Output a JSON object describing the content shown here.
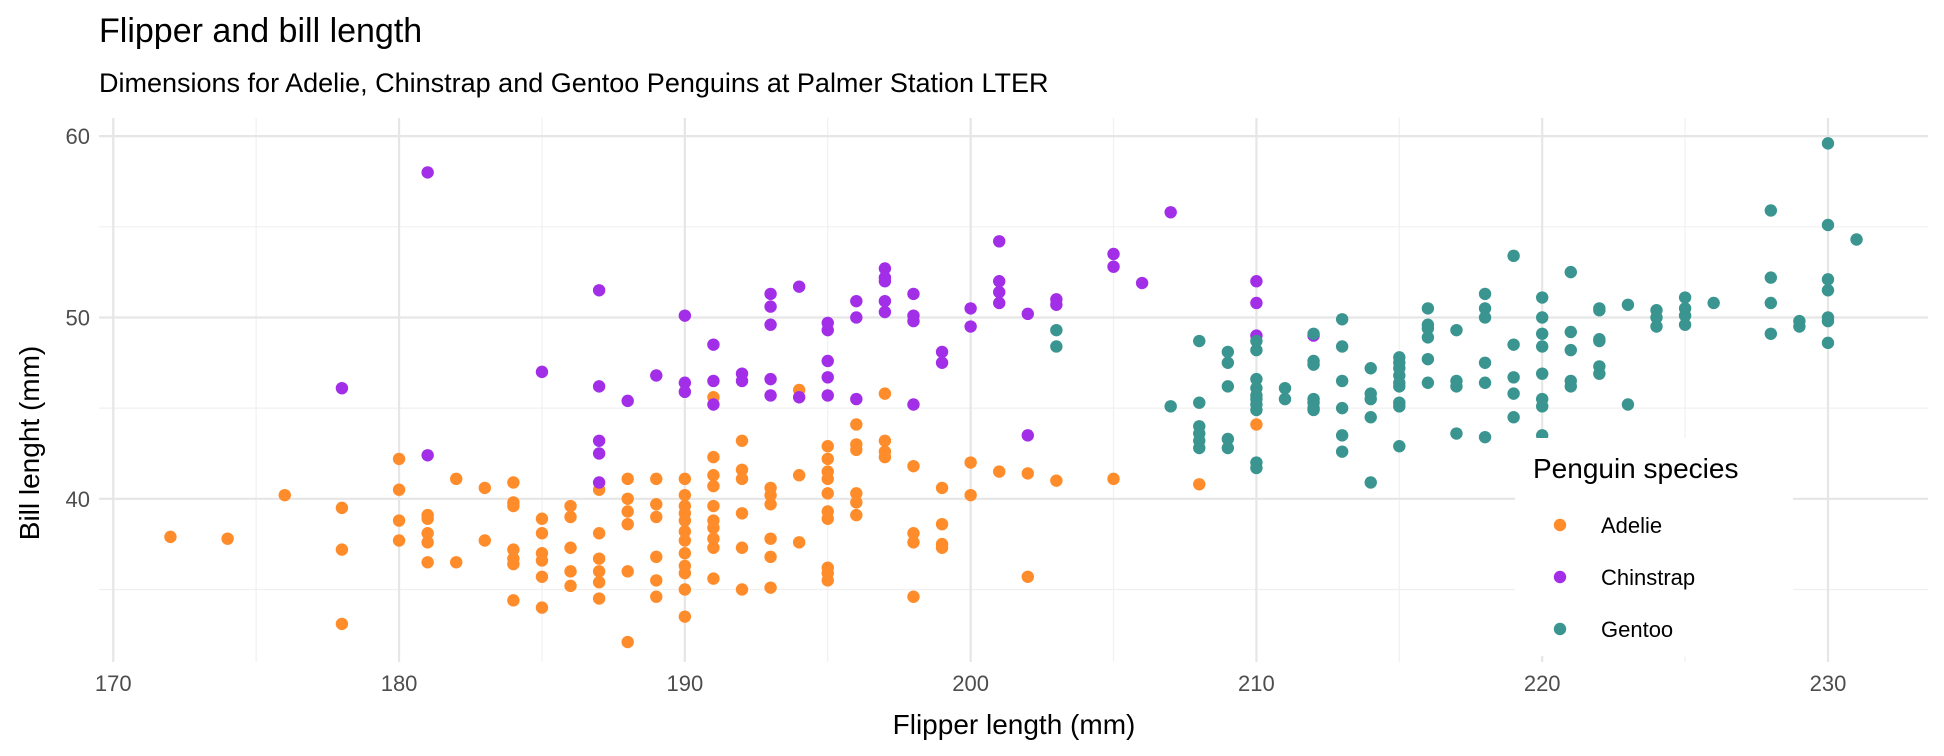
{
  "chart_data": {
    "type": "scatter",
    "title": "Flipper and bill length",
    "subtitle": "Dimensions for Adelie, Chinstrap and Gentoo Penguins at Palmer Station LTER",
    "xlabel": "Flipper length (mm)",
    "ylabel": "Bill lenght (mm)",
    "xlim": [
      169.5,
      233.5
    ],
    "ylim": [
      31,
      61
    ],
    "x_ticks": [
      170,
      180,
      190,
      200,
      210,
      220,
      230
    ],
    "y_ticks": [
      40,
      50,
      60
    ],
    "grid": true,
    "legend": {
      "title": "Penguin species",
      "position": "right-inset"
    },
    "series": [
      {
        "name": "Adelie",
        "color": "#FF8C2B",
        "points": [
          [
            172,
            37.9
          ],
          [
            174,
            37.8
          ],
          [
            176,
            40.2
          ],
          [
            178,
            39.5
          ],
          [
            178,
            37.2
          ],
          [
            178,
            33.1
          ],
          [
            180,
            42.2
          ],
          [
            180,
            40.5
          ],
          [
            180,
            38.8
          ],
          [
            180,
            37.7
          ],
          [
            181,
            39.1
          ],
          [
            181,
            38.9
          ],
          [
            181,
            38.1
          ],
          [
            181,
            37.6
          ],
          [
            181,
            36.5
          ],
          [
            182,
            41.1
          ],
          [
            182,
            36.5
          ],
          [
            183,
            40.6
          ],
          [
            183,
            37.7
          ],
          [
            184,
            40.9
          ],
          [
            184,
            39.8
          ],
          [
            184,
            39.6
          ],
          [
            184,
            37.2
          ],
          [
            184,
            36.7
          ],
          [
            184,
            36.4
          ],
          [
            184,
            34.4
          ],
          [
            185,
            38.9
          ],
          [
            185,
            38.1
          ],
          [
            185,
            37.0
          ],
          [
            185,
            36.6
          ],
          [
            185,
            35.7
          ],
          [
            185,
            34.0
          ],
          [
            186,
            39.6
          ],
          [
            186,
            39.0
          ],
          [
            186,
            37.3
          ],
          [
            186,
            36.0
          ],
          [
            186,
            35.2
          ],
          [
            187,
            40.5
          ],
          [
            187,
            38.1
          ],
          [
            187,
            36.7
          ],
          [
            187,
            36.0
          ],
          [
            187,
            35.4
          ],
          [
            187,
            34.5
          ],
          [
            188,
            41.1
          ],
          [
            188,
            40.0
          ],
          [
            188,
            39.3
          ],
          [
            188,
            38.6
          ],
          [
            188,
            36.0
          ],
          [
            188,
            32.1
          ],
          [
            189,
            41.1
          ],
          [
            189,
            39.7
          ],
          [
            189,
            39.0
          ],
          [
            189,
            36.8
          ],
          [
            189,
            35.5
          ],
          [
            189,
            34.6
          ],
          [
            190,
            41.1
          ],
          [
            190,
            40.2
          ],
          [
            190,
            39.6
          ],
          [
            190,
            39.2
          ],
          [
            190,
            38.8
          ],
          [
            190,
            38.2
          ],
          [
            190,
            37.7
          ],
          [
            190,
            37.0
          ],
          [
            190,
            36.3
          ],
          [
            190,
            35.9
          ],
          [
            190,
            35.0
          ],
          [
            190,
            33.5
          ],
          [
            191,
            45.6
          ],
          [
            191,
            42.3
          ],
          [
            191,
            41.3
          ],
          [
            191,
            40.7
          ],
          [
            191,
            39.6
          ],
          [
            191,
            38.8
          ],
          [
            191,
            38.4
          ],
          [
            191,
            37.8
          ],
          [
            191,
            37.3
          ],
          [
            191,
            35.6
          ],
          [
            192,
            43.2
          ],
          [
            192,
            41.6
          ],
          [
            192,
            41.1
          ],
          [
            192,
            39.2
          ],
          [
            192,
            37.3
          ],
          [
            192,
            35.0
          ],
          [
            193,
            40.6
          ],
          [
            193,
            40.2
          ],
          [
            193,
            39.7
          ],
          [
            193,
            37.8
          ],
          [
            193,
            36.8
          ],
          [
            193,
            35.1
          ],
          [
            194,
            46.0
          ],
          [
            194,
            41.3
          ],
          [
            194,
            37.6
          ],
          [
            195,
            42.9
          ],
          [
            195,
            42.2
          ],
          [
            195,
            41.5
          ],
          [
            195,
            41.1
          ],
          [
            195,
            40.3
          ],
          [
            195,
            39.3
          ],
          [
            195,
            38.9
          ],
          [
            195,
            36.2
          ],
          [
            195,
            35.9
          ],
          [
            195,
            35.5
          ],
          [
            196,
            44.1
          ],
          [
            196,
            43.0
          ],
          [
            196,
            42.7
          ],
          [
            196,
            40.3
          ],
          [
            196,
            39.8
          ],
          [
            196,
            39.1
          ],
          [
            197,
            45.8
          ],
          [
            197,
            43.2
          ],
          [
            197,
            42.6
          ],
          [
            197,
            42.3
          ],
          [
            198,
            41.8
          ],
          [
            198,
            38.1
          ],
          [
            198,
            37.6
          ],
          [
            198,
            34.6
          ],
          [
            199,
            40.6
          ],
          [
            199,
            38.6
          ],
          [
            199,
            37.5
          ],
          [
            199,
            37.3
          ],
          [
            200,
            42.0
          ],
          [
            200,
            40.2
          ],
          [
            201,
            41.5
          ],
          [
            202,
            41.4
          ],
          [
            202,
            35.7
          ],
          [
            203,
            41.0
          ],
          [
            205,
            41.1
          ],
          [
            208,
            40.8
          ],
          [
            210,
            44.1
          ]
        ]
      },
      {
        "name": "Chinstrap",
        "color": "#A22EE8",
        "points": [
          [
            178,
            46.1
          ],
          [
            181,
            58.0
          ],
          [
            181,
            42.4
          ],
          [
            185,
            47.0
          ],
          [
            187,
            51.5
          ],
          [
            187,
            46.2
          ],
          [
            187,
            43.2
          ],
          [
            187,
            42.5
          ],
          [
            187,
            40.9
          ],
          [
            188,
            45.4
          ],
          [
            189,
            46.8
          ],
          [
            190,
            50.1
          ],
          [
            190,
            46.4
          ],
          [
            190,
            45.9
          ],
          [
            191,
            48.5
          ],
          [
            191,
            46.5
          ],
          [
            191,
            45.2
          ],
          [
            192,
            46.9
          ],
          [
            192,
            46.5
          ],
          [
            193,
            51.3
          ],
          [
            193,
            50.6
          ],
          [
            193,
            49.6
          ],
          [
            193,
            46.6
          ],
          [
            193,
            45.7
          ],
          [
            194,
            51.7
          ],
          [
            194,
            45.6
          ],
          [
            195,
            49.7
          ],
          [
            195,
            49.3
          ],
          [
            195,
            47.6
          ],
          [
            195,
            46.7
          ],
          [
            195,
            45.7
          ],
          [
            196,
            50.9
          ],
          [
            196,
            50.0
          ],
          [
            196,
            45.5
          ],
          [
            197,
            52.7
          ],
          [
            197,
            52.2
          ],
          [
            197,
            52.0
          ],
          [
            197,
            50.9
          ],
          [
            197,
            50.3
          ],
          [
            198,
            51.3
          ],
          [
            198,
            50.1
          ],
          [
            198,
            49.8
          ],
          [
            198,
            45.2
          ],
          [
            199,
            48.1
          ],
          [
            199,
            47.5
          ],
          [
            200,
            50.5
          ],
          [
            200,
            49.5
          ],
          [
            201,
            54.2
          ],
          [
            201,
            52.0
          ],
          [
            201,
            51.4
          ],
          [
            201,
            50.8
          ],
          [
            202,
            50.2
          ],
          [
            202,
            43.5
          ],
          [
            203,
            51.0
          ],
          [
            203,
            50.7
          ],
          [
            205,
            53.5
          ],
          [
            205,
            52.8
          ],
          [
            206,
            51.9
          ],
          [
            207,
            55.8
          ],
          [
            210,
            52.0
          ],
          [
            210,
            50.8
          ],
          [
            210,
            49.0
          ],
          [
            212,
            49.0
          ]
        ]
      },
      {
        "name": "Gentoo",
        "color": "#3A9590",
        "points": [
          [
            203,
            49.3
          ],
          [
            203,
            48.4
          ],
          [
            207,
            45.1
          ],
          [
            208,
            48.7
          ],
          [
            208,
            45.3
          ],
          [
            208,
            44.0
          ],
          [
            208,
            43.6
          ],
          [
            208,
            43.2
          ],
          [
            208,
            42.8
          ],
          [
            209,
            48.1
          ],
          [
            209,
            47.5
          ],
          [
            209,
            46.2
          ],
          [
            209,
            43.3
          ],
          [
            209,
            42.8
          ],
          [
            210,
            48.2
          ],
          [
            210,
            48.7
          ],
          [
            210,
            46.6
          ],
          [
            210,
            46.1
          ],
          [
            210,
            45.7
          ],
          [
            210,
            45.5
          ],
          [
            210,
            45.2
          ],
          [
            210,
            44.9
          ],
          [
            210,
            42.0
          ],
          [
            210,
            41.7
          ],
          [
            211,
            46.1
          ],
          [
            211,
            45.5
          ],
          [
            212,
            49.1
          ],
          [
            212,
            47.6
          ],
          [
            212,
            47.4
          ],
          [
            212,
            45.5
          ],
          [
            212,
            45.3
          ],
          [
            212,
            45.0
          ],
          [
            212,
            44.9
          ],
          [
            213,
            49.9
          ],
          [
            213,
            48.4
          ],
          [
            213,
            46.5
          ],
          [
            213,
            45.0
          ],
          [
            213,
            43.5
          ],
          [
            213,
            42.6
          ],
          [
            214,
            47.2
          ],
          [
            214,
            45.8
          ],
          [
            214,
            45.5
          ],
          [
            214,
            44.5
          ],
          [
            214,
            40.9
          ],
          [
            215,
            47.8
          ],
          [
            215,
            47.5
          ],
          [
            215,
            47.2
          ],
          [
            215,
            46.8
          ],
          [
            215,
            46.4
          ],
          [
            215,
            46.2
          ],
          [
            215,
            45.3
          ],
          [
            215,
            45.1
          ],
          [
            215,
            42.9
          ],
          [
            216,
            50.5
          ],
          [
            216,
            49.6
          ],
          [
            216,
            49.4
          ],
          [
            216,
            48.9
          ],
          [
            216,
            47.7
          ],
          [
            216,
            46.4
          ],
          [
            217,
            49.3
          ],
          [
            217,
            46.5
          ],
          [
            217,
            46.2
          ],
          [
            217,
            43.6
          ],
          [
            218,
            51.3
          ],
          [
            218,
            50.5
          ],
          [
            218,
            50.0
          ],
          [
            218,
            47.5
          ],
          [
            218,
            46.4
          ],
          [
            218,
            43.4
          ],
          [
            219,
            53.4
          ],
          [
            219,
            48.5
          ],
          [
            219,
            46.7
          ],
          [
            219,
            45.8
          ],
          [
            219,
            44.5
          ],
          [
            220,
            51.1
          ],
          [
            220,
            50.0
          ],
          [
            220,
            49.1
          ],
          [
            220,
            48.4
          ],
          [
            220,
            46.9
          ],
          [
            220,
            45.5
          ],
          [
            220,
            45.1
          ],
          [
            220,
            43.5
          ],
          [
            221,
            52.5
          ],
          [
            221,
            49.2
          ],
          [
            221,
            48.2
          ],
          [
            221,
            46.5
          ],
          [
            221,
            46.2
          ],
          [
            222,
            50.5
          ],
          [
            222,
            50.4
          ],
          [
            222,
            48.8
          ],
          [
            222,
            48.7
          ],
          [
            222,
            47.3
          ],
          [
            222,
            46.9
          ],
          [
            223,
            50.7
          ],
          [
            223,
            45.2
          ],
          [
            224,
            50.4
          ],
          [
            224,
            50.0
          ],
          [
            224,
            49.5
          ],
          [
            225,
            51.1
          ],
          [
            225,
            50.5
          ],
          [
            225,
            50.1
          ],
          [
            225,
            49.6
          ],
          [
            226,
            50.8
          ],
          [
            228,
            55.9
          ],
          [
            228,
            52.2
          ],
          [
            228,
            50.8
          ],
          [
            228,
            49.1
          ],
          [
            229,
            49.8
          ],
          [
            229,
            49.5
          ],
          [
            230,
            59.6
          ],
          [
            230,
            55.1
          ],
          [
            230,
            52.1
          ],
          [
            230,
            51.5
          ],
          [
            230,
            50.0
          ],
          [
            230,
            49.8
          ],
          [
            230,
            48.6
          ],
          [
            231,
            54.3
          ]
        ]
      }
    ]
  }
}
